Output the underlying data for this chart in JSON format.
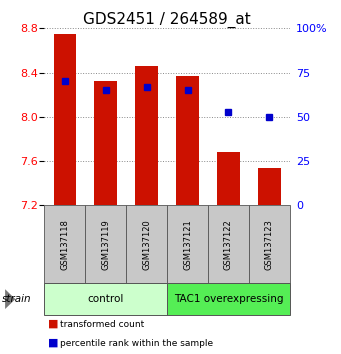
{
  "title": "GDS2451 / 264589_at",
  "samples": [
    "GSM137118",
    "GSM137119",
    "GSM137120",
    "GSM137121",
    "GSM137122",
    "GSM137123"
  ],
  "transformed_counts": [
    8.75,
    8.32,
    8.46,
    8.37,
    7.68,
    7.54
  ],
  "percentile_ranks": [
    70,
    65,
    67,
    65,
    53,
    50
  ],
  "bar_bottom": 7.2,
  "ylim_left": [
    7.2,
    8.8
  ],
  "ylim_right": [
    0,
    100
  ],
  "yticks_left": [
    7.2,
    7.6,
    8.0,
    8.4,
    8.8
  ],
  "yticks_right": [
    0,
    25,
    50,
    75,
    100
  ],
  "bar_color": "#cc1100",
  "dot_color": "#0000cc",
  "groups": [
    {
      "label": "control",
      "indices": [
        0,
        1,
        2
      ],
      "color": "#ccffcc"
    },
    {
      "label": "TAC1 overexpressing",
      "indices": [
        3,
        4,
        5
      ],
      "color": "#55ee55"
    }
  ],
  "strain_label": "strain",
  "legend_red_label": "transformed count",
  "legend_blue_label": "percentile rank within the sample",
  "grid_color": "#888888",
  "background_color": "#ffffff",
  "bar_width": 0.55,
  "title_fontsize": 11,
  "sample_box_color": "#c8c8c8",
  "sample_box_edge": "#555555"
}
